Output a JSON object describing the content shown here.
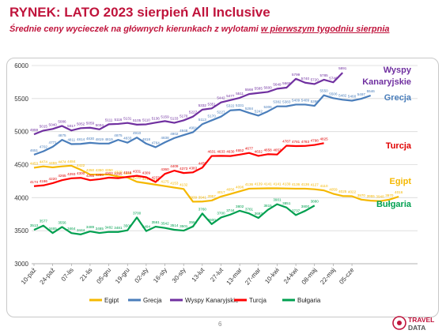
{
  "header": {
    "title": "RYNEK: LATO 2023 sierpień All Inclusive",
    "subtitle_pre": "Średnie ceny wycieczek na głównych kierunkach z wylotami ",
    "subtitle_u": "w pierwszym tygodniu sierpnia"
  },
  "footer": {
    "page_number": "6",
    "logo_text": "TRAVEL DATA"
  },
  "chart_data": {
    "type": "line",
    "title": "",
    "xlabel": "",
    "ylabel": "",
    "ylim": [
      3000,
      6000
    ],
    "yticks": [
      3000,
      3500,
      4000,
      4500,
      5000,
      5500,
      6000
    ],
    "grid": "horizontal",
    "legend": "bottom",
    "x_tick_labels": [
      "10-paź",
      "24-paź",
      "07-lis",
      "21-lis",
      "05-gru",
      "19-gru",
      "02-sty",
      "16-sty",
      "30-sty",
      "13-lut",
      "27-lut",
      "13-mar",
      "27-mar",
      "10-kwi",
      "24-kwi",
      "08-maj",
      "22-maj",
      "05-cze"
    ],
    "series": [
      {
        "name": "Egipt",
        "color": "#f5b800",
        "label_color": "#f5b800",
        "values": [
          4453,
          4474,
          4459,
          4474,
          4484,
          4422,
          4350,
          4350,
          4350,
          4320,
          4305,
          4240,
          4219,
          4197,
          4175,
          4153,
          4132,
          3939,
          3941,
          3957,
          4017,
          4056,
          4096,
          4136,
          4139,
          4141,
          4141,
          4139,
          4136,
          4136,
          4127,
          4110,
          4059,
          4025,
          4022,
          3970,
          3955,
          3948,
          3970,
          4016
        ]
      },
      {
        "name": "Grecja",
        "color": "#4a7ebb",
        "label_color": "#4a7ebb",
        "values": [
          4651,
          4702,
          4771,
          4875,
          4811,
          4814,
          4830,
          4819,
          4819,
          4875,
          4833,
          4910,
          4818,
          4764,
          4838,
          4902,
          4948,
          4991,
          5113,
          5170,
          5227,
          5322,
          5331,
          5284,
          5242,
          5306,
          5382,
          5383,
          5409,
          5409,
          5390,
          5550,
          5506,
          5482,
          5468,
          5497,
          5546
        ]
      },
      {
        "name": "Wyspy Kanaryjskie",
        "color": "#7030a0",
        "label_color": "#7030a0",
        "values": [
          4959,
          5015,
          5040,
          5086,
          5017,
          5052,
          5059,
          5034,
          5111,
          5116,
          5131,
          5105,
          5110,
          5136,
          5159,
          5133,
          5170,
          5227,
          5332,
          5351,
          5442,
          5477,
          5511,
          5568,
          5585,
          5600,
          5649,
          5665,
          5799,
          5740,
          5720,
          5785,
          5746,
          5891
        ]
      },
      {
        "name": "Turcja",
        "color": "#ff0000",
        "label_color": "#e00000",
        "values": [
          4174,
          4186,
          4220,
          4265,
          4293,
          4300,
          4265,
          4280,
          4303,
          4295,
          4315,
          4331,
          4309,
          4237,
          4360,
          4409,
          4373,
          4383,
          4455,
          4631,
          4633,
          4630,
          4652,
          4677,
          4632,
          4658,
          4653,
          4787,
          4781,
          4783,
          4798,
          4825
        ]
      },
      {
        "name": "Bułgaria",
        "color": "#00a050",
        "label_color": "#00a050",
        "values": [
          3513,
          3577,
          3465,
          3556,
          3464,
          3444,
          3489,
          3465,
          3482,
          3481,
          3506,
          3700,
          3494,
          3561,
          3542,
          3514,
          3501,
          3564,
          3760,
          3600,
          3700,
          3744,
          3802,
          3761,
          3693,
          3815,
          3901,
          3851,
          3737,
          3800,
          3880
        ]
      }
    ],
    "right_labels": [
      {
        "lines": [
          "Wyspy",
          "Kanaryjskie"
        ],
        "color": "#7030a0"
      },
      {
        "lines": [
          "Grecja"
        ],
        "color": "#4a7ebb"
      },
      {
        "lines": [
          "Turcja"
        ],
        "color": "#e00000"
      },
      {
        "lines": [
          "Egipt"
        ],
        "color": "#f5b800"
      },
      {
        "lines": [
          "Bułgaria"
        ],
        "color": "#00a050"
      }
    ]
  }
}
